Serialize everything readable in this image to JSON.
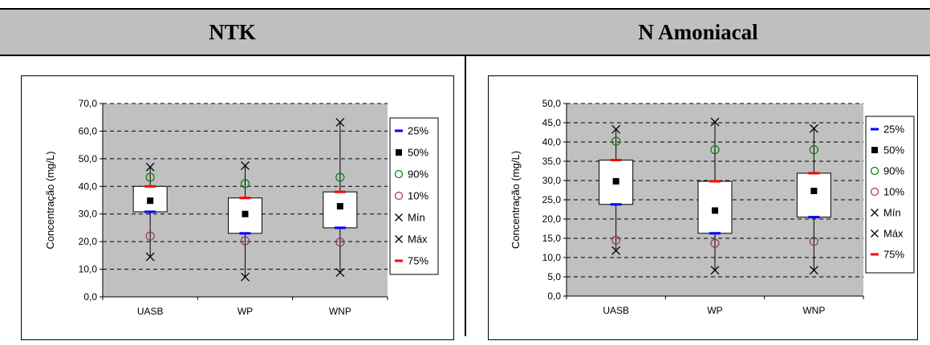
{
  "headers": {
    "left": "NTK",
    "right": "N Amoniacal"
  },
  "chart_data": [
    {
      "type": "box",
      "title": "NTK",
      "ylabel": "Concentração (mg/L)",
      "ylim": [
        0,
        70
      ],
      "ytick_step": 10,
      "ytick_labels": [
        "0,0",
        "10,0",
        "20,0",
        "30,0",
        "40,0",
        "50,0",
        "60,0",
        "70,0"
      ],
      "grid": "dashed horizontal",
      "categories": [
        "UASB",
        "WP",
        "WNP"
      ],
      "legend": {
        "placement": "right",
        "entries": [
          "25%",
          "50%",
          "90%",
          "10%",
          "Mín",
          "Máx",
          "75%"
        ]
      },
      "series": [
        {
          "name": "25%",
          "values": [
            30.8,
            23.0,
            25.0
          ]
        },
        {
          "name": "50%",
          "values": [
            34.8,
            30.0,
            32.8
          ]
        },
        {
          "name": "90%",
          "values": [
            43.3,
            41.0,
            43.3
          ]
        },
        {
          "name": "10%",
          "values": [
            22.0,
            20.3,
            19.8
          ]
        },
        {
          "name": "Mín",
          "values": [
            14.5,
            7.2,
            8.8
          ]
        },
        {
          "name": "Máx",
          "values": [
            47.0,
            47.5,
            63.2
          ]
        },
        {
          "name": "75%",
          "values": [
            40.0,
            35.8,
            38.0
          ]
        }
      ]
    },
    {
      "type": "box",
      "title": "N Amoniacal",
      "ylabel": "Concentração (mg/L)",
      "ylim": [
        0,
        50
      ],
      "ytick_step": 5,
      "ytick_labels": [
        "0,0",
        "5,0",
        "10,0",
        "15,0",
        "20,0",
        "25,0",
        "30,0",
        "35,0",
        "40,0",
        "45,0",
        "50,0"
      ],
      "grid": "dashed horizontal",
      "categories": [
        "UASB",
        "WP",
        "WNP"
      ],
      "legend": {
        "placement": "right",
        "entries": [
          "25%",
          "50%",
          "90%",
          "10%",
          "Mín",
          "Máx",
          "75%"
        ]
      },
      "series": [
        {
          "name": "25%",
          "values": [
            23.8,
            16.3,
            20.5
          ]
        },
        {
          "name": "50%",
          "values": [
            29.8,
            22.2,
            27.3
          ]
        },
        {
          "name": "90%",
          "values": [
            40.2,
            38.0,
            38.0
          ]
        },
        {
          "name": "10%",
          "values": [
            14.5,
            13.7,
            14.2
          ]
        },
        {
          "name": "Mín",
          "values": [
            11.8,
            6.7,
            6.7
          ]
        },
        {
          "name": "Máx",
          "values": [
            43.3,
            45.2,
            43.5
          ]
        },
        {
          "name": "75%",
          "values": [
            35.3,
            29.8,
            31.9
          ]
        }
      ]
    }
  ],
  "colors": {
    "plot_bg": "#c0c0c0",
    "box_fill": "#ffffff",
    "p25": "#0000ff",
    "p50": "#000000",
    "p90": "#008000",
    "p10": "#993366",
    "min": "#000000",
    "max": "#000000",
    "p75": "#ff0000"
  }
}
